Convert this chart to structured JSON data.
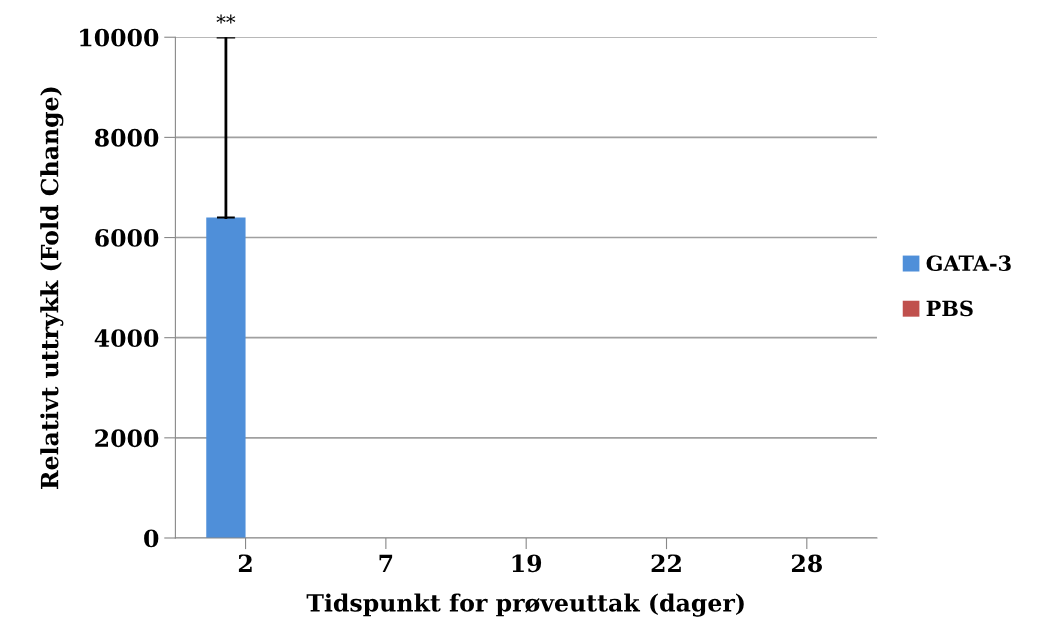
{
  "chart_data": {
    "type": "bar",
    "xlabel": "Tidspunkt for prøveuttak (dager)",
    "ylabel": "Relativt uttrykk (Fold Change)",
    "categories": [
      "2",
      "7",
      "19",
      "22",
      "28"
    ],
    "series": [
      {
        "name": "GATA-3",
        "color": "#4f8fd9",
        "values": [
          6400,
          0,
          0,
          0,
          0
        ],
        "errors": [
          [
            6400,
            10000
          ],
          null,
          null,
          null,
          null
        ]
      },
      {
        "name": "PBS",
        "color": "#c0504d",
        "values": [
          0,
          0,
          0,
          0,
          0
        ]
      }
    ],
    "annotations": [
      "**"
    ],
    "ylim": [
      0,
      10000
    ],
    "yticks": [
      0,
      2000,
      4000,
      6000,
      8000,
      10000
    ],
    "grid": "y",
    "legend": "right"
  }
}
